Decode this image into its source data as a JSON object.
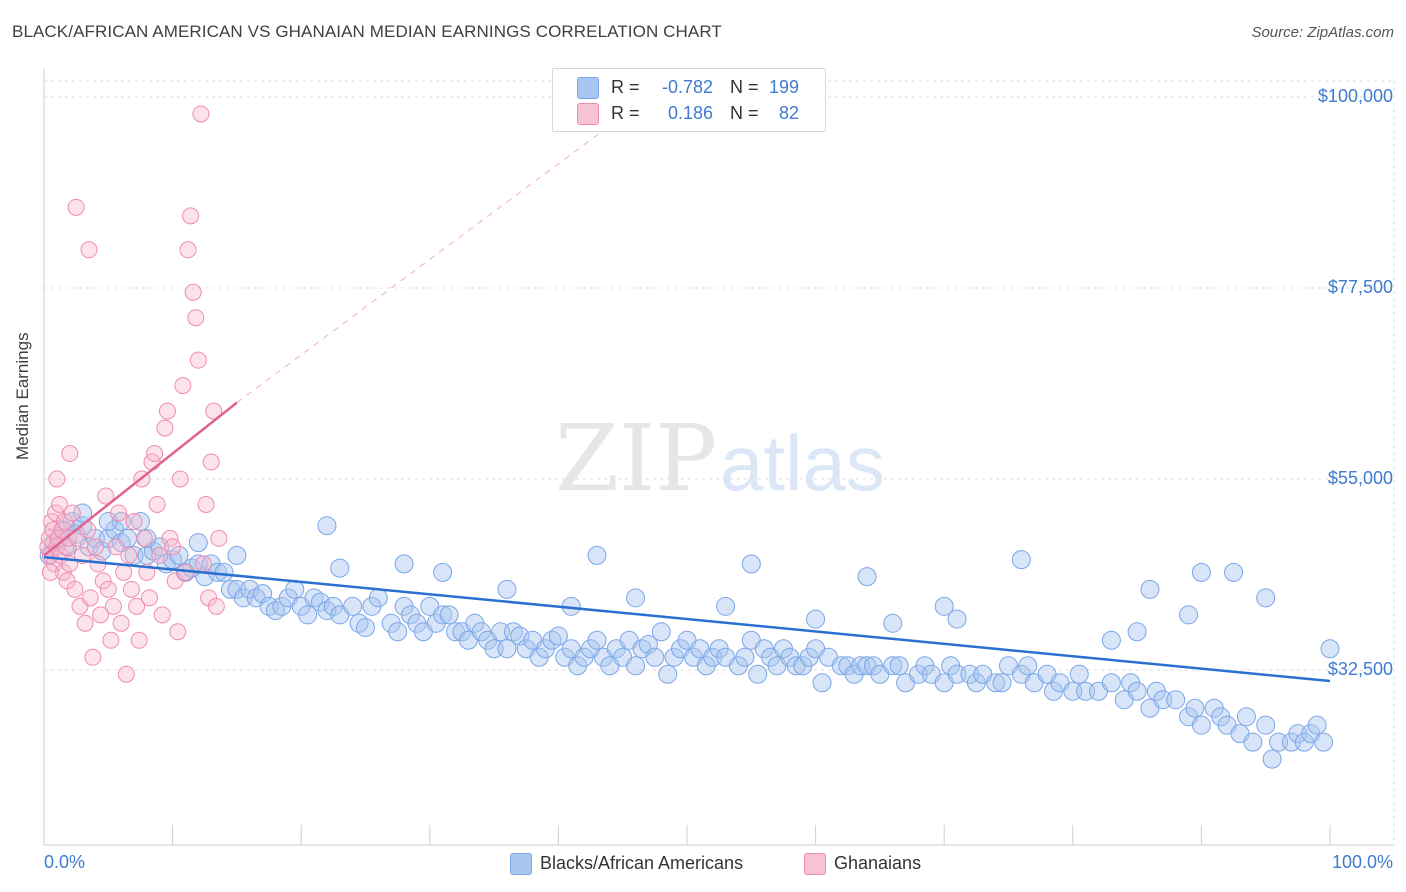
{
  "header": {
    "title": "BLACK/AFRICAN AMERICAN VS GHANAIAN MEDIAN EARNINGS CORRELATION CHART",
    "source": "Source: ZipAtlas.com"
  },
  "watermark": {
    "zip": "ZIP",
    "atlas": "atlas"
  },
  "legend": {
    "r_label": "R =",
    "n_label": "N =",
    "series1": {
      "r": "-0.782",
      "n": "199"
    },
    "series2": {
      "r": "0.186",
      "n": "82"
    }
  },
  "colors": {
    "blue": "#7aa6e8",
    "blue_fill": "#a8c6f0",
    "blue_line": "#2b6fd1",
    "pink": "#f08cae",
    "pink_fill": "#f7b7cc",
    "pink_line": "#e0648f",
    "tick_text": "#3f7bd0",
    "grid": "#dcdcdc"
  },
  "chart_data": {
    "type": "scatter",
    "title": "BLACK/AFRICAN AMERICAN VS GHANAIAN MEDIAN EARNINGS CORRELATION CHART",
    "xlabel": "",
    "ylabel": "Median Earnings",
    "xlim": [
      0,
      100
    ],
    "ylim": [
      14000,
      102500
    ],
    "x_tick_labels": [
      "0.0%",
      "100.0%"
    ],
    "y_ticks": [
      32500,
      55000,
      77500,
      100000
    ],
    "y_tick_labels": [
      "$32,500",
      "$55,000",
      "$77,500",
      "$100,000"
    ],
    "grid": true,
    "legend_position": "top-center",
    "series": [
      {
        "name": "Blacks/African Americans",
        "color": "#7aa6e8",
        "r": -0.782,
        "n": 199,
        "trend": {
          "x": [
            0,
            100
          ],
          "y": [
            45800,
            31200
          ]
        },
        "points": [
          [
            0.4,
            46
          ],
          [
            0.8,
            47.5
          ],
          [
            1.2,
            48
          ],
          [
            1.5,
            49
          ],
          [
            1.8,
            47
          ],
          [
            2.2,
            50
          ],
          [
            2.5,
            48.5
          ],
          [
            3,
            49.5
          ],
          [
            3.5,
            47
          ],
          [
            4,
            48
          ],
          [
            4.5,
            46.5
          ],
          [
            5,
            48
          ],
          [
            5.5,
            49
          ],
          [
            6,
            47.5
          ],
          [
            6.5,
            48
          ],
          [
            7,
            46
          ],
          [
            7.5,
            50
          ],
          [
            8,
            46
          ],
          [
            8.5,
            46.5
          ],
          [
            9,
            47
          ],
          [
            9.5,
            45
          ],
          [
            10,
            45.5
          ],
          [
            10.5,
            46
          ],
          [
            11,
            44
          ],
          [
            11.5,
            44.5
          ],
          [
            12,
            45
          ],
          [
            12.5,
            43.5
          ],
          [
            13,
            45
          ],
          [
            13.5,
            44
          ],
          [
            14,
            44
          ],
          [
            14.5,
            42
          ],
          [
            15,
            42
          ],
          [
            15.5,
            41
          ],
          [
            16,
            42
          ],
          [
            16.5,
            41
          ],
          [
            17,
            41.5
          ],
          [
            17.5,
            40
          ],
          [
            18,
            39.5
          ],
          [
            18.5,
            40
          ],
          [
            19,
            41
          ],
          [
            19.5,
            42
          ],
          [
            20,
            40
          ],
          [
            20.5,
            39
          ],
          [
            21,
            41
          ],
          [
            21.5,
            40.5
          ],
          [
            22,
            39.5
          ],
          [
            22.5,
            40
          ],
          [
            23,
            39
          ],
          [
            24,
            40
          ],
          [
            24.5,
            38
          ],
          [
            25,
            37.5
          ],
          [
            25.5,
            40
          ],
          [
            26,
            41
          ],
          [
            27,
            38
          ],
          [
            27.5,
            37
          ],
          [
            28,
            40
          ],
          [
            28.5,
            39
          ],
          [
            29,
            38
          ],
          [
            29.5,
            37
          ],
          [
            30,
            40
          ],
          [
            30.5,
            38
          ],
          [
            31,
            39
          ],
          [
            31.5,
            39
          ],
          [
            32,
            37
          ],
          [
            32.5,
            37
          ],
          [
            33,
            36
          ],
          [
            33.5,
            38
          ],
          [
            34,
            37
          ],
          [
            34.5,
            36
          ],
          [
            35,
            35
          ],
          [
            35.5,
            37
          ],
          [
            36,
            35
          ],
          [
            36.5,
            37
          ],
          [
            37,
            36.5
          ],
          [
            37.5,
            35
          ],
          [
            38,
            36
          ],
          [
            38.5,
            34
          ],
          [
            39,
            35
          ],
          [
            39.5,
            36
          ],
          [
            40,
            36.5
          ],
          [
            40.5,
            34
          ],
          [
            41,
            35
          ],
          [
            41.5,
            33
          ],
          [
            42,
            34
          ],
          [
            42.5,
            35
          ],
          [
            43,
            36
          ],
          [
            43.5,
            34
          ],
          [
            44,
            33
          ],
          [
            44.5,
            35
          ],
          [
            45,
            34
          ],
          [
            45.5,
            36
          ],
          [
            46,
            33
          ],
          [
            46.5,
            35
          ],
          [
            47,
            35.5
          ],
          [
            47.5,
            34
          ],
          [
            48,
            37
          ],
          [
            48.5,
            32
          ],
          [
            49,
            34
          ],
          [
            49.5,
            35
          ],
          [
            50,
            36
          ],
          [
            50.5,
            34
          ],
          [
            51,
            35
          ],
          [
            51.5,
            33
          ],
          [
            52,
            34
          ],
          [
            52.5,
            35
          ],
          [
            53,
            34
          ],
          [
            54,
            33
          ],
          [
            54.5,
            34
          ],
          [
            55,
            36
          ],
          [
            55.5,
            32
          ],
          [
            56,
            35
          ],
          [
            56.5,
            34
          ],
          [
            57,
            33
          ],
          [
            57.5,
            35
          ],
          [
            58,
            34
          ],
          [
            58.5,
            33
          ],
          [
            59,
            33
          ],
          [
            59.5,
            34
          ],
          [
            60,
            35
          ],
          [
            60.5,
            31
          ],
          [
            61,
            34
          ],
          [
            62,
            33
          ],
          [
            62.5,
            33
          ],
          [
            63,
            32
          ],
          [
            63.5,
            33
          ],
          [
            64,
            33
          ],
          [
            64.5,
            33
          ],
          [
            65,
            32
          ],
          [
            66,
            33
          ],
          [
            66.5,
            33
          ],
          [
            67,
            31
          ],
          [
            68,
            32
          ],
          [
            68.5,
            33
          ],
          [
            69,
            32
          ],
          [
            70,
            31
          ],
          [
            70.5,
            33
          ],
          [
            71,
            32
          ],
          [
            72,
            32
          ],
          [
            72.5,
            31
          ],
          [
            73,
            32
          ],
          [
            74,
            31
          ],
          [
            74.5,
            31
          ],
          [
            75,
            33
          ],
          [
            76,
            32
          ],
          [
            76.5,
            33
          ],
          [
            77,
            31
          ],
          [
            78,
            32
          ],
          [
            78.5,
            30
          ],
          [
            79,
            31
          ],
          [
            80,
            30
          ],
          [
            80.5,
            32
          ],
          [
            81,
            30
          ],
          [
            82,
            30
          ],
          [
            83,
            31
          ],
          [
            84,
            29
          ],
          [
            84.5,
            31
          ],
          [
            85,
            30
          ],
          [
            86,
            28
          ],
          [
            86.5,
            30
          ],
          [
            87,
            29
          ],
          [
            88,
            29
          ],
          [
            89,
            27
          ],
          [
            89.5,
            28
          ],
          [
            90,
            26
          ],
          [
            91,
            28
          ],
          [
            91.5,
            27
          ],
          [
            92,
            26
          ],
          [
            93,
            25
          ],
          [
            93.5,
            27
          ],
          [
            94,
            24
          ],
          [
            95,
            26
          ],
          [
            95.5,
            22
          ],
          [
            96,
            24
          ],
          [
            97,
            24
          ],
          [
            97.5,
            25
          ],
          [
            98,
            24
          ],
          [
            98.5,
            25
          ],
          [
            99,
            26
          ],
          [
            99.5,
            24
          ],
          [
            22,
            49.5
          ],
          [
            55,
            45
          ],
          [
            64,
            43.5
          ],
          [
            76,
            45.5
          ],
          [
            90,
            44
          ],
          [
            92.5,
            44
          ],
          [
            86,
            42
          ],
          [
            66,
            38
          ],
          [
            60,
            38.5
          ],
          [
            71,
            38.5
          ],
          [
            83,
            36
          ],
          [
            41,
            40
          ],
          [
            46,
            41
          ],
          [
            53,
            40
          ],
          [
            36,
            42
          ],
          [
            31,
            44
          ],
          [
            23,
            44.5
          ],
          [
            28,
            45
          ],
          [
            43,
            46
          ],
          [
            95,
            41
          ],
          [
            89,
            39
          ],
          [
            85,
            37
          ],
          [
            100,
            35
          ],
          [
            15,
            46
          ],
          [
            12,
            47.5
          ],
          [
            6,
            50
          ],
          [
            3,
            51
          ],
          [
            5,
            50
          ],
          [
            8,
            48
          ],
          [
            70,
            40
          ]
        ]
      },
      {
        "name": "Ghanaians",
        "color": "#f08cae",
        "r": 0.186,
        "n": 82,
        "trend": {
          "x": [
            0,
            15
          ],
          "y": [
            46000,
            64000
          ]
        },
        "trend_dashed": {
          "x": [
            15,
            47
          ],
          "y": [
            64000,
            100000
          ]
        },
        "points": [
          [
            0.3,
            47
          ],
          [
            0.4,
            48
          ],
          [
            0.5,
            46
          ],
          [
            0.6,
            50
          ],
          [
            0.7,
            49
          ],
          [
            0.8,
            45
          ],
          [
            0.9,
            51
          ],
          [
            1,
            47
          ],
          [
            1.1,
            48
          ],
          [
            1.2,
            52
          ],
          [
            1.3,
            46
          ],
          [
            1.4,
            49
          ],
          [
            1.5,
            44
          ],
          [
            1.6,
            50
          ],
          [
            1.7,
            47
          ],
          [
            1.8,
            43
          ],
          [
            1.9,
            48
          ],
          [
            2,
            45
          ],
          [
            2.2,
            51
          ],
          [
            2.4,
            42
          ],
          [
            2.6,
            48
          ],
          [
            2.8,
            40
          ],
          [
            3,
            46
          ],
          [
            3.2,
            38
          ],
          [
            3.4,
            49
          ],
          [
            3.6,
            41
          ],
          [
            3.8,
            34
          ],
          [
            4,
            47
          ],
          [
            4.2,
            45
          ],
          [
            4.4,
            39
          ],
          [
            4.6,
            43
          ],
          [
            4.8,
            53
          ],
          [
            5,
            42
          ],
          [
            5.2,
            36
          ],
          [
            5.4,
            40
          ],
          [
            5.6,
            47
          ],
          [
            5.8,
            51
          ],
          [
            6,
            38
          ],
          [
            6.2,
            44
          ],
          [
            6.4,
            32
          ],
          [
            6.6,
            46
          ],
          [
            6.8,
            42
          ],
          [
            7,
            50
          ],
          [
            7.2,
            40
          ],
          [
            7.4,
            36
          ],
          [
            7.6,
            55
          ],
          [
            7.8,
            48
          ],
          [
            8,
            44
          ],
          [
            8.2,
            41
          ],
          [
            8.4,
            57
          ],
          [
            8.6,
            58
          ],
          [
            8.8,
            52
          ],
          [
            9,
            46
          ],
          [
            9.2,
            39
          ],
          [
            9.4,
            61
          ],
          [
            9.6,
            63
          ],
          [
            9.8,
            48
          ],
          [
            10,
            47
          ],
          [
            10.2,
            43
          ],
          [
            10.4,
            37
          ],
          [
            10.6,
            55
          ],
          [
            10.8,
            66
          ],
          [
            11,
            44
          ],
          [
            11.2,
            82
          ],
          [
            11.4,
            86
          ],
          [
            11.6,
            77
          ],
          [
            11.8,
            74
          ],
          [
            12,
            69
          ],
          [
            12.2,
            98
          ],
          [
            12.4,
            45
          ],
          [
            12.6,
            52
          ],
          [
            12.8,
            41
          ],
          [
            13,
            57
          ],
          [
            13.2,
            63
          ],
          [
            13.4,
            40
          ],
          [
            13.6,
            48
          ],
          [
            2.5,
            87
          ],
          [
            3.5,
            82
          ],
          [
            1,
            55
          ],
          [
            2,
            58
          ],
          [
            0.5,
            44
          ]
        ]
      }
    ]
  },
  "bottom_legend": {
    "series1": "Blacks/African Americans",
    "series2": "Ghanaians"
  }
}
